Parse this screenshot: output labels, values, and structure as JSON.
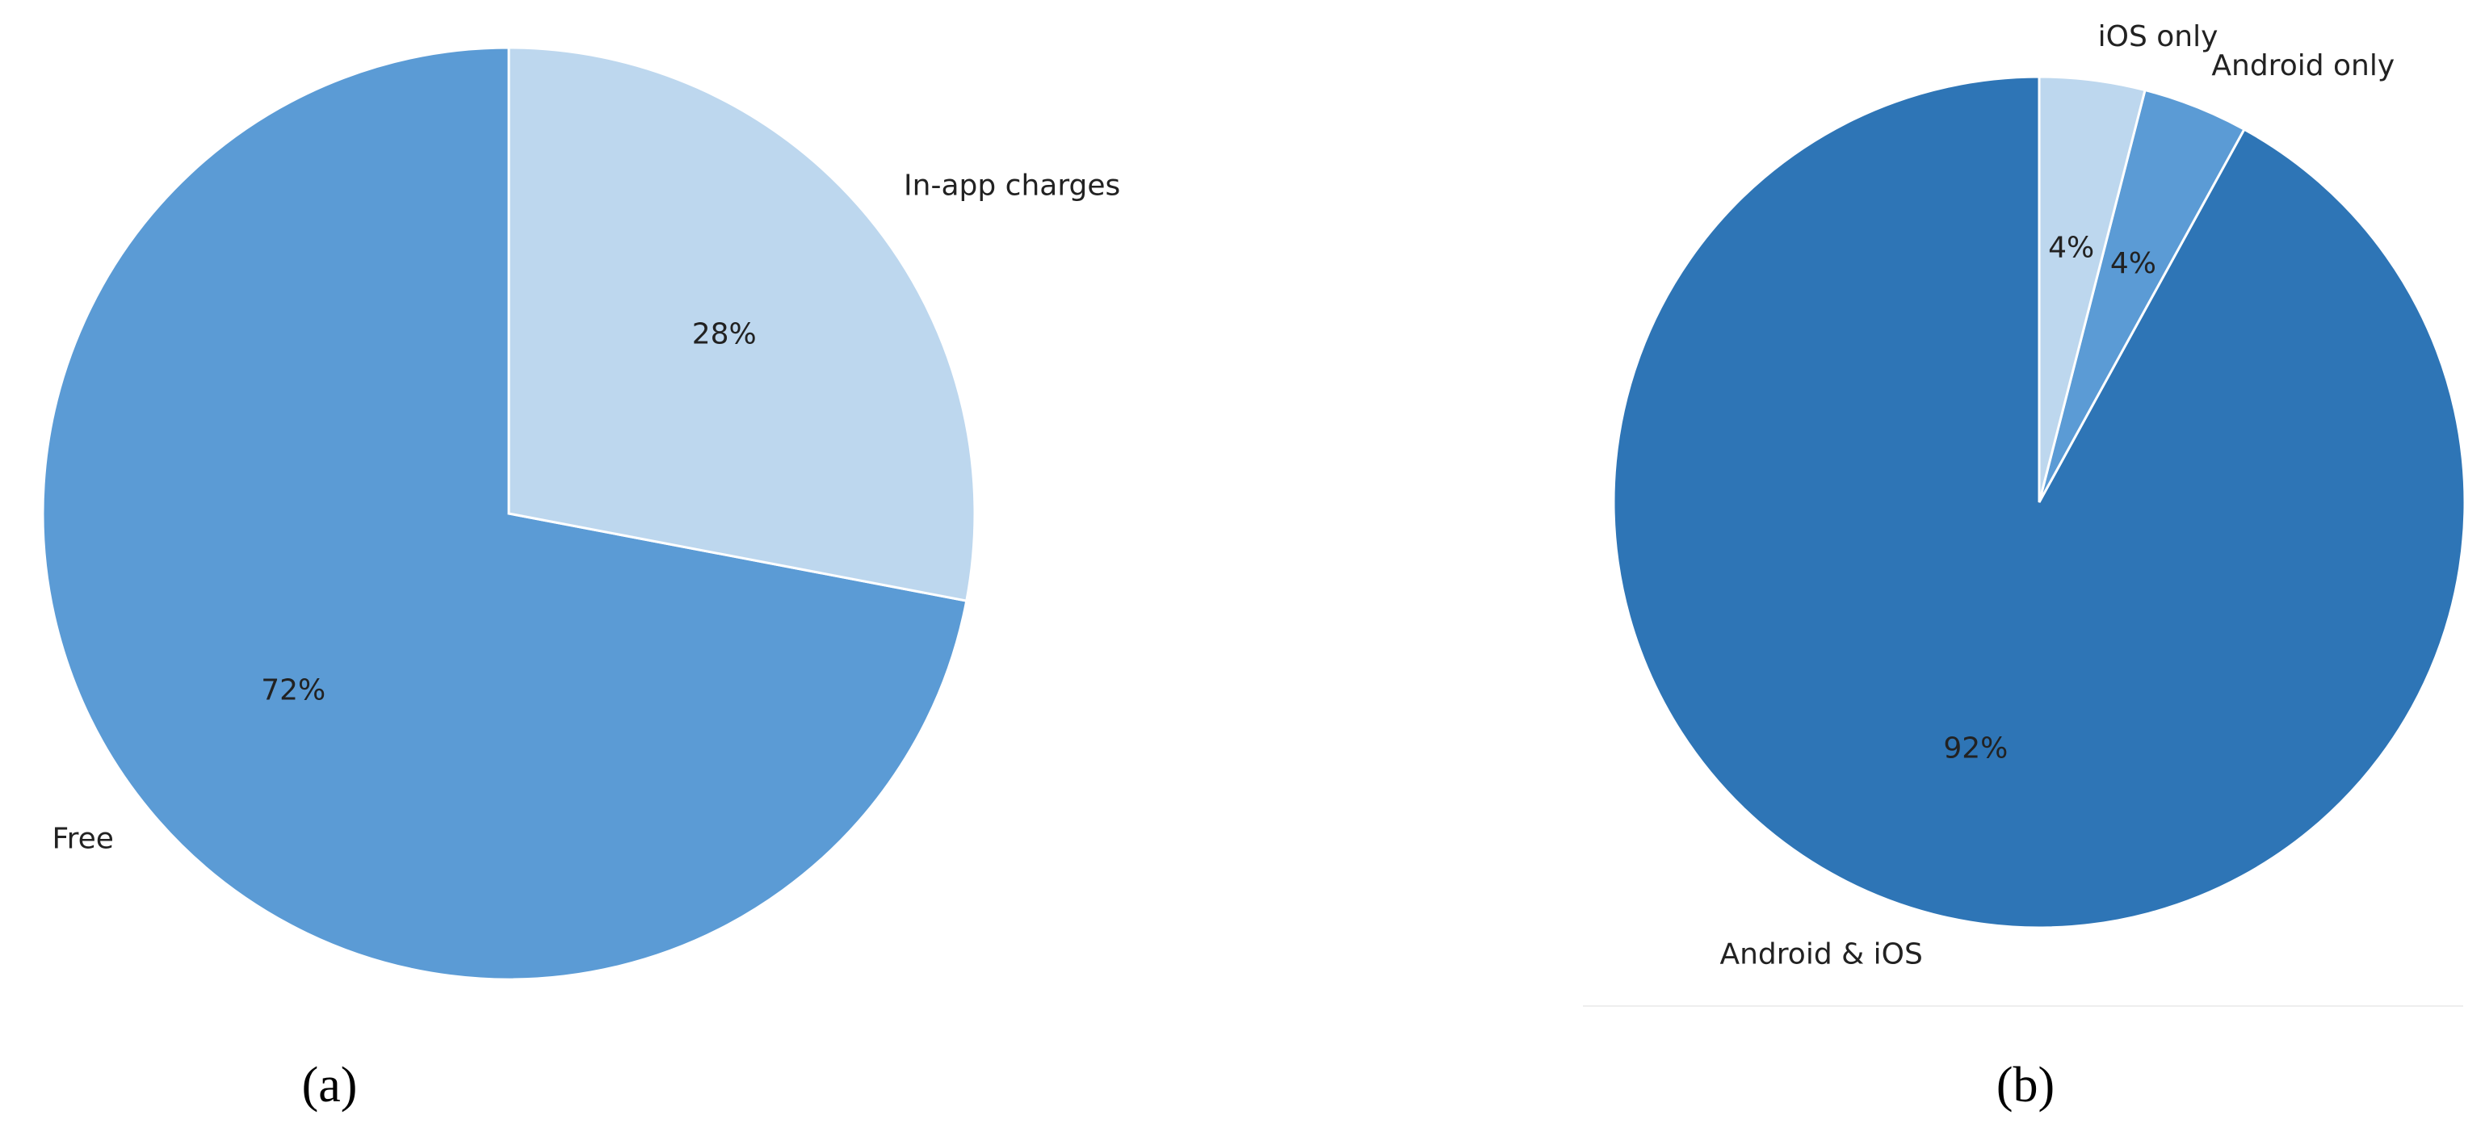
{
  "chart_data": [
    {
      "type": "pie",
      "caption": "(a)",
      "categories": [
        "Free",
        "In-app charges"
      ],
      "values": [
        72,
        28
      ],
      "value_labels": [
        "72%",
        "28%"
      ],
      "colors": [
        "#5b9bd5",
        "#bdd7ee"
      ]
    },
    {
      "type": "pie",
      "caption": "(b)",
      "categories": [
        "Android & iOS",
        "Android only",
        "iOS only"
      ],
      "values": [
        92,
        4,
        4
      ],
      "value_labels": [
        "92%",
        "4%",
        "4%"
      ],
      "colors": [
        "#2e75b6",
        "#5b9bd5",
        "#bdd7ee"
      ]
    }
  ]
}
